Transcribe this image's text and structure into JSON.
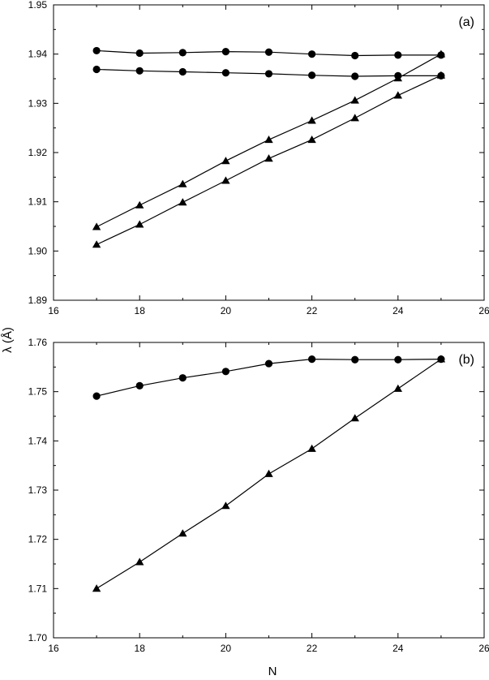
{
  "figure": {
    "ylabel": "λ (Å)",
    "xlabel": "N"
  },
  "chart_data": [
    {
      "type": "line",
      "panel_label": "(a)",
      "xlim": [
        16,
        26
      ],
      "ylim": [
        1.89,
        1.95
      ],
      "xticks": [
        "16",
        "18",
        "20",
        "22",
        "24",
        "26"
      ],
      "yticks": [
        "1.89",
        "1.90",
        "1.91",
        "1.92",
        "1.93",
        "1.94",
        "1.95"
      ],
      "grid": false,
      "x": [
        17,
        18,
        19,
        20,
        21,
        22,
        23,
        24,
        25
      ],
      "series": [
        {
          "marker": "circle",
          "values": [
            1.9407,
            1.9402,
            1.9403,
            1.9405,
            1.9404,
            1.94,
            1.9397,
            1.9398,
            1.9398
          ]
        },
        {
          "marker": "circle",
          "values": [
            1.9369,
            1.9366,
            1.9364,
            1.9362,
            1.936,
            1.9357,
            1.9355,
            1.9356,
            1.9356
          ]
        },
        {
          "marker": "triangle",
          "values": [
            1.9049,
            1.9093,
            1.9136,
            1.9183,
            1.9226,
            1.9265,
            1.9306,
            1.9351,
            1.94
          ]
        },
        {
          "marker": "triangle",
          "values": [
            1.9013,
            1.9054,
            1.9099,
            1.9143,
            1.9188,
            1.9226,
            1.927,
            1.9316,
            1.9357
          ]
        }
      ]
    },
    {
      "type": "line",
      "panel_label": "(b)",
      "xlim": [
        16,
        26
      ],
      "ylim": [
        1.7,
        1.76
      ],
      "xticks": [
        "16",
        "18",
        "20",
        "22",
        "24",
        "26"
      ],
      "yticks": [
        "1.70",
        "1.71",
        "1.72",
        "1.73",
        "1.74",
        "1.75",
        "1.76"
      ],
      "grid": false,
      "x": [
        17,
        18,
        19,
        20,
        21,
        22,
        23,
        24,
        25
      ],
      "series": [
        {
          "marker": "circle",
          "values": [
            1.7491,
            1.7512,
            1.7528,
            1.7541,
            1.7557,
            1.7566,
            1.7565,
            1.7565,
            1.7566
          ]
        },
        {
          "marker": "triangle",
          "values": [
            1.71,
            1.7154,
            1.7212,
            1.7268,
            1.7333,
            1.7384,
            1.7446,
            1.7506,
            1.7566
          ]
        }
      ]
    }
  ]
}
